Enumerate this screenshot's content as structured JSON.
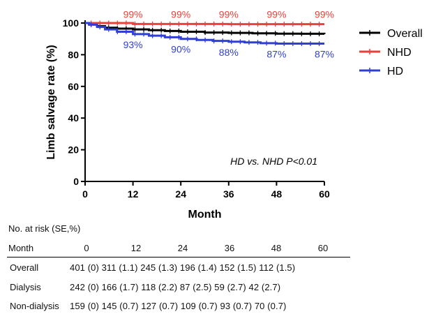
{
  "chart_data": {
    "type": "line",
    "ylabel": "Limb salvage rate (%)",
    "xlabel": "Month",
    "xlim": [
      0,
      60
    ],
    "ylim": [
      0,
      100
    ],
    "xticks": [
      "0",
      "12",
      "24",
      "36",
      "48",
      "60"
    ],
    "yticks": [
      "0",
      "20",
      "40",
      "60",
      "80",
      "100"
    ],
    "legend_position": "right",
    "annotation": "HD vs. NHD P<0.01",
    "series": [
      {
        "name": "Overall",
        "color": "#000000",
        "x": [
          0,
          1,
          3,
          5,
          8,
          12,
          16,
          20,
          24,
          30,
          36,
          42,
          48,
          54,
          60
        ],
        "y": [
          100,
          99,
          98,
          97,
          96.5,
          96,
          95.5,
          95,
          94.5,
          94,
          93.8,
          93.5,
          93.3,
          93.2,
          93
        ]
      },
      {
        "name": "NHD",
        "color": "#e8413a",
        "x": [
          0,
          12,
          24,
          36,
          48,
          60
        ],
        "y": [
          100,
          99.4,
          99.4,
          99.3,
          99.3,
          99.3
        ],
        "labels": [
          "",
          "99%",
          "99%",
          "99%",
          "99%",
          "99%"
        ]
      },
      {
        "name": "HD",
        "color": "#2f3fd1",
        "x": [
          0,
          1,
          3,
          5,
          8,
          12,
          16,
          20,
          24,
          28,
          32,
          36,
          40,
          44,
          48,
          54,
          60
        ],
        "y": [
          100,
          99,
          97.5,
          96,
          94.5,
          93,
          92,
          91,
          90,
          89.3,
          88.7,
          88.2,
          87.8,
          87.3,
          87,
          87,
          87
        ],
        "labels": [
          "",
          "",
          "",
          "",
          "",
          "93%",
          "",
          "",
          "90%",
          "",
          "",
          "88%",
          "",
          "",
          "87%",
          "",
          "87%"
        ]
      }
    ]
  },
  "risk_table": {
    "caption": "No. at risk (SE,%)",
    "month_label": "Month",
    "months": [
      "0",
      "12",
      "24",
      "36",
      "48",
      "60"
    ],
    "rows": [
      {
        "label": "Overall",
        "values": "401 (0)   311 (1.1)  245 (1.3)  196 (1.4) 152 (1.5)  112 (1.5)"
      },
      {
        "label": "Dialysis",
        "values": "242 (0)   166 (1.7)  118 (2.2)   87 (2.5)   59 (2.7)   42 (2.7)"
      },
      {
        "label": "Non-dialysis",
        "values": "159 (0)   145 (0.7)  127 (0.7)  109 (0.7)   93 (0.7)   70 (0.7)"
      }
    ]
  }
}
